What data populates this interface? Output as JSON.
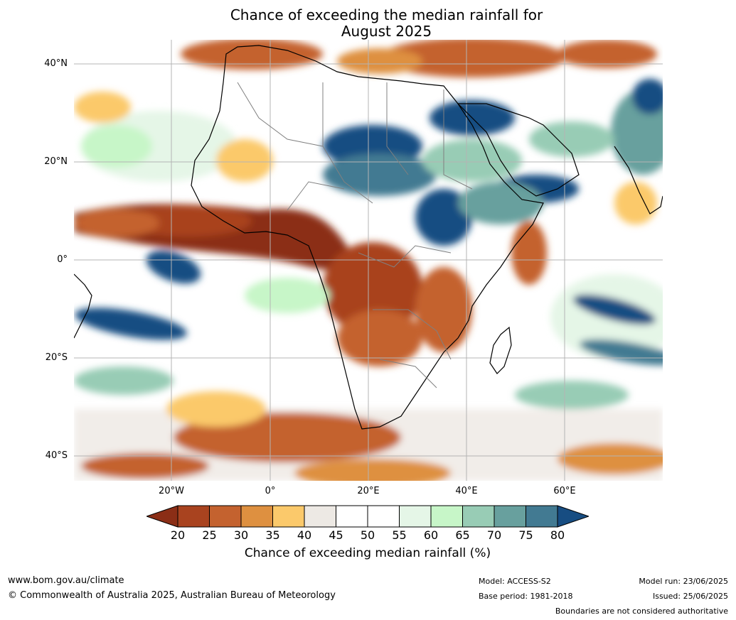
{
  "title": {
    "line1": "Chance of exceeding the median rainfall for",
    "line2": "August 2025"
  },
  "lat_labels": [
    "40°N",
    "20°N",
    "0°",
    "20°S",
    "40°S"
  ],
  "lon_labels": [
    "20°W",
    "0°",
    "20°E",
    "40°E",
    "60°E"
  ],
  "colorbar": {
    "ticks": [
      "20",
      "25",
      "30",
      "35",
      "40",
      "45",
      "50",
      "55",
      "60",
      "65",
      "70",
      "75",
      "80"
    ],
    "colors": [
      "#8b2e16",
      "#a9431f",
      "#c4622f",
      "#de9040",
      "#fbc96b",
      "#ede9e4",
      "#ffffff",
      "#ffffff",
      "#e5f6e7",
      "#c7f6c8",
      "#98ccb5",
      "#68a09e",
      "#427a92",
      "#174d82"
    ],
    "label": "Chance of exceeding median rainfall (%)"
  },
  "footer": {
    "url": "www.bom.gov.au/climate",
    "copyright": "© Commonwealth of Australia 2025, Australian Bureau of Meteorology",
    "model": "Model: ACCESS-S2",
    "base_period": "Base period: 1981-2018",
    "model_run": "Model run: 23/06/2025",
    "issued": "Issued: 25/06/2025",
    "disclaimer": "Boundaries are not considered authoritative"
  },
  "colors": {
    "coast": "#000000",
    "borders": "#808080",
    "grid": "#b4b4b4"
  }
}
